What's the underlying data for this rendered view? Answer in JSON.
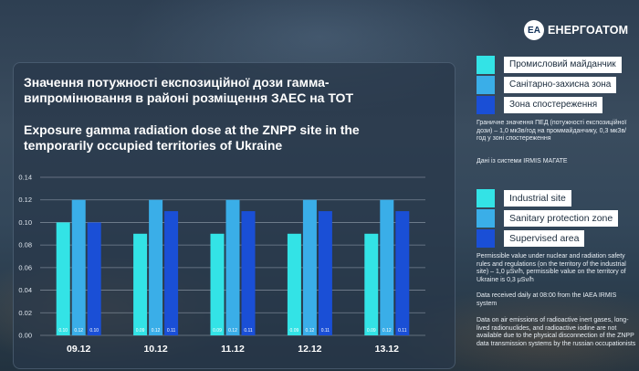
{
  "brand": {
    "logo_mark": "EA",
    "name": "ЕНЕРГОАТОМ"
  },
  "title_ua": "Значення потужності експозиційної дози гамма-випромінювання в районі розміщення ЗАЕС на ТОТ",
  "title_en": "Exposure gamma radiation dose at the ZNPP site in the temporarily occupied territories of Ukraine",
  "colors": {
    "industrial": "#33e3e6",
    "sanitary": "#3aaee8",
    "supervised": "#1a4fd6"
  },
  "legend_ua": [
    {
      "label": "Промисловий майданчик"
    },
    {
      "label": "Санітарно-захисна зона"
    },
    {
      "label": "Зона спостереження"
    }
  ],
  "legend_en": [
    {
      "label": "Industrial site"
    },
    {
      "label": "Sanitary protection zone"
    },
    {
      "label": "Supervised area"
    }
  ],
  "notes_ua": {
    "limits": "Граничне значення ПЕД (потужності експозиційної дози) – 1,0 мкЗв/год на проммайданчику, 0,3 мкЗв/год у зоні спостереження",
    "source": "Дані із системи IRMIS МАГАТЕ"
  },
  "notes_en": {
    "limits": "Permissible value under nuclear and radiation safety rules and regulations (on the territory of the industrial site) – 1,0 μSv/h, permissible value on the territory of Ukraine is 0,3 μSv/h",
    "source": "Data received daily at 08:00 from the IAEA IRMIS system",
    "emissions": "Data on air emissions of radioactive inert gases, long-lived radionuclides, and radioactive iodine are not available due to the physical disconnection of the ZNPP data transmission systems by the russian occupationists"
  },
  "chart_data": {
    "type": "bar",
    "categories": [
      "09.12",
      "10.12",
      "11.12",
      "12.12",
      "13.12"
    ],
    "series": [
      {
        "name": "Industrial site",
        "values": [
          0.1,
          0.09,
          0.09,
          0.09,
          0.09
        ],
        "labels": [
          "0.10",
          "0.09",
          "0.09",
          "0.09",
          "0.09"
        ]
      },
      {
        "name": "Sanitary protection zone",
        "values": [
          0.12,
          0.12,
          0.12,
          0.12,
          0.12
        ],
        "labels": [
          "0.12",
          "0.12",
          "0.12",
          "0.12",
          "0.12"
        ]
      },
      {
        "name": "Supervised area",
        "values": [
          0.1,
          0.11,
          0.11,
          0.11,
          0.11
        ],
        "labels": [
          "0.10",
          "0.11",
          "0.11",
          "0.11",
          "0.11"
        ]
      }
    ],
    "yticks": [
      "0.00",
      "0.02",
      "0.04",
      "0.06",
      "0.08",
      "0.10",
      "0.12",
      "0.14"
    ],
    "ylim": [
      0,
      0.14
    ],
    "grid": true
  }
}
